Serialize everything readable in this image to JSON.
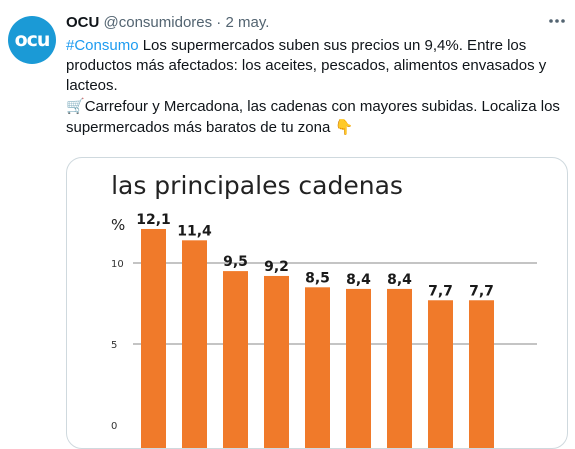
{
  "tweet": {
    "avatar_text": "ocu",
    "author_name": "OCU",
    "handle": "@consumidores",
    "separator": "·",
    "date": "2 may.",
    "more_icon": "more-horizontal-icon",
    "hashtag": "#Consumo",
    "paragraph1_rest": " Los supermercados suben sus precios un 9,4%. Entre los productos más afectados: los aceites, pescados, alimentos envasados y lacteos.",
    "cart_emoji": "🛒",
    "paragraph2_text": "Carrefour y Mercadona, las cadenas con mayores subidas. Localiza los supermercados más baratos de tu zona ",
    "pointing_emoji": "👇"
  },
  "chart_data": {
    "type": "bar",
    "title": "las principales cadenas",
    "ylabel": "%",
    "yticks": [
      0,
      5,
      10
    ],
    "ylim": [
      0,
      15
    ],
    "bar_color": "#f07a2a",
    "categories": [
      "",
      "",
      "",
      "",
      "",
      "",
      "",
      "",
      ""
    ],
    "values": [
      12.1,
      11.4,
      9.5,
      9.2,
      8.5,
      8.4,
      8.4,
      7.7,
      7.7
    ],
    "value_labels": [
      "12,1",
      "11,4",
      "9,5",
      "9,2",
      "8,5",
      "8,4",
      "8,4",
      "7,7",
      "7,7"
    ],
    "grid": true
  }
}
